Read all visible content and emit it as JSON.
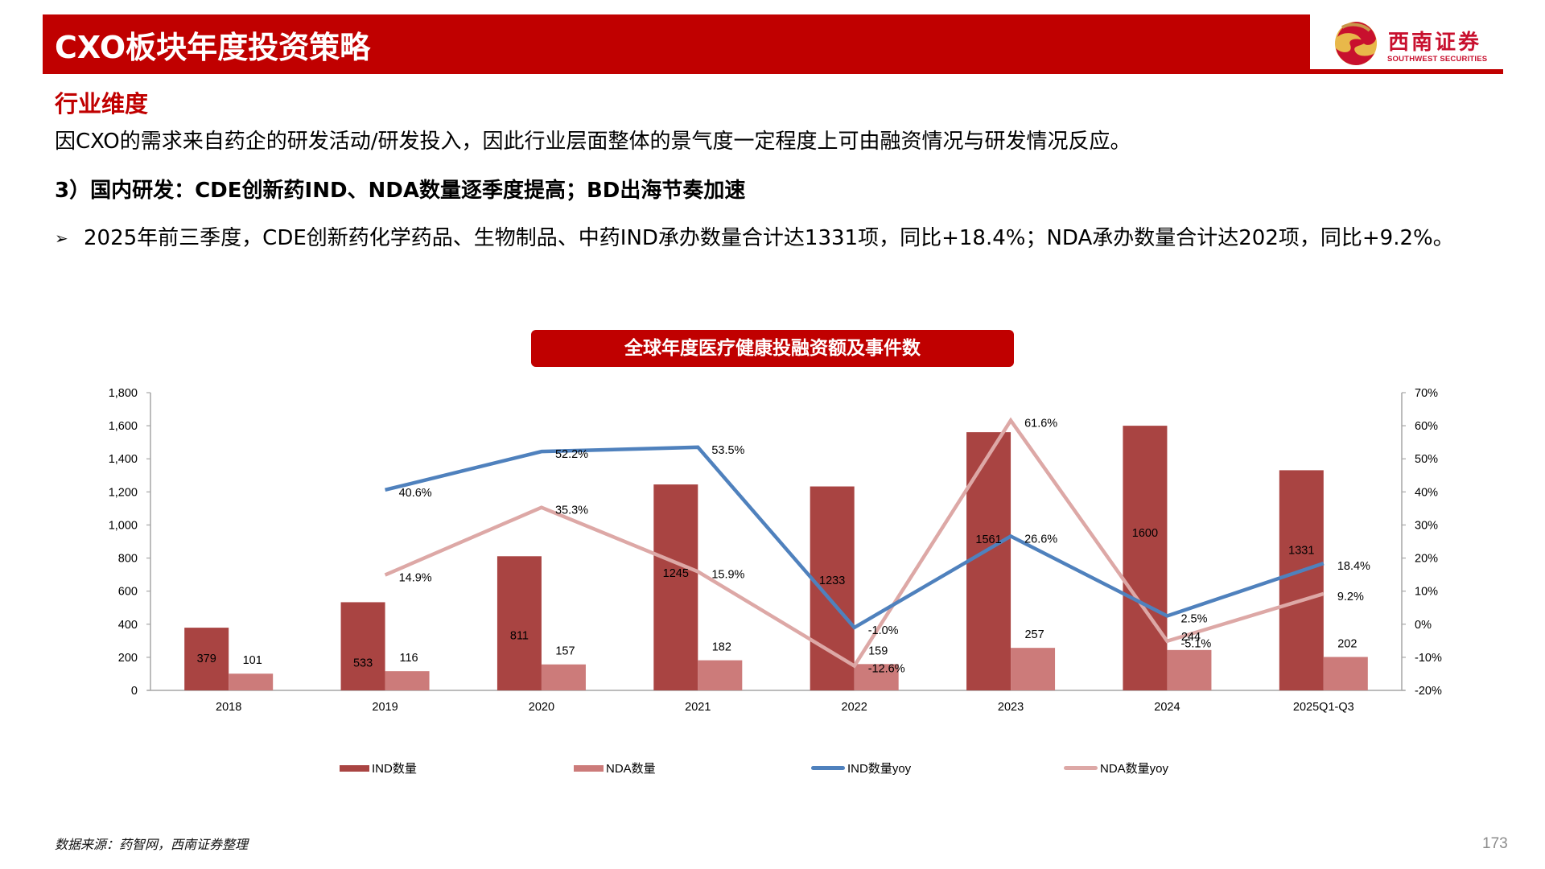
{
  "header": {
    "title": "CXO板块年度投资策略",
    "logo_cn": "西南证券",
    "logo_en": "SOUTHWEST SECURITIES",
    "colors": {
      "brand_red": "#C00000",
      "logo_gold": "#E8B84A",
      "logo_red": "#C8102E"
    }
  },
  "body": {
    "section_heading": "行业维度",
    "intro": "因CXO的需求来自药企的研发活动/研发投入，因此行业层面整体的景气度一定程度上可由融资情况与研发情况反应。",
    "sub_heading": "3）国内研发：CDE创新药IND、NDA数量逐季度提高；BD出海节奏加速",
    "bullet_mark": "➢",
    "bullet_text": "2025年前三季度，CDE创新药化学药品、生物制品、中药IND承办数量合计达1331项，同比+18.4%；NDA承办数量合计达202项，同比+9.2%。"
  },
  "chart_title": "全球年度医疗健康投融资额及事件数",
  "chart_data": {
    "type": "bar",
    "title": "全球年度医疗健康投融资额及事件数",
    "categories": [
      "2018",
      "2019",
      "2020",
      "2021",
      "2022",
      "2023",
      "2024",
      "2025Q1-Q3"
    ],
    "series": [
      {
        "name": "IND数量",
        "type": "bar",
        "axis": "left",
        "color": "#A94442",
        "values": [
          379,
          533,
          811,
          1245,
          1233,
          1561,
          1600,
          1331
        ]
      },
      {
        "name": "NDA数量",
        "type": "bar",
        "axis": "left",
        "color": "#CC7B7A",
        "values": [
          101,
          116,
          157,
          182,
          159,
          257,
          244,
          202
        ]
      },
      {
        "name": "IND数量yoy",
        "type": "line",
        "axis": "right",
        "color": "#4F81BD",
        "values": [
          null,
          40.6,
          52.2,
          53.5,
          -1.0,
          26.6,
          2.5,
          18.4
        ],
        "labels": [
          "",
          "40.6%",
          "52.2%",
          "53.5%",
          "-1.0%",
          "26.6%",
          "2.5%",
          "18.4%"
        ]
      },
      {
        "name": "NDA数量yoy",
        "type": "line",
        "axis": "right",
        "color": "#DDA8A6",
        "values": [
          null,
          14.9,
          35.3,
          15.9,
          -12.6,
          61.6,
          -5.1,
          9.2
        ],
        "labels": [
          "",
          "14.9%",
          "35.3%",
          "15.9%",
          "-12.6%",
          "61.6%",
          "-5.1%",
          "9.2%"
        ]
      }
    ],
    "y_left": {
      "min": 0,
      "max": 1800,
      "step": 200,
      "ticks": [
        "0",
        "200",
        "400",
        "600",
        "800",
        "1,000",
        "1,200",
        "1,400",
        "1,600",
        "1,800"
      ]
    },
    "y_right": {
      "min": -20,
      "max": 70,
      "step": 10,
      "ticks": [
        "-20%",
        "-10%",
        "0%",
        "10%",
        "20%",
        "30%",
        "40%",
        "50%",
        "60%",
        "70%"
      ]
    },
    "xlabel": "",
    "ylabel": "",
    "grid": false,
    "legend_position": "bottom"
  },
  "legend": [
    {
      "label": "IND数量",
      "kind": "bar",
      "color": "#A94442"
    },
    {
      "label": "NDA数量",
      "kind": "bar",
      "color": "#CC7B7A"
    },
    {
      "label": "IND数量yoy",
      "kind": "line",
      "color": "#4F81BD"
    },
    {
      "label": "NDA数量yoy",
      "kind": "line",
      "color": "#DDA8A6"
    }
  ],
  "footer": {
    "source": "数据来源：药智网，西南证券整理",
    "page_number": "173"
  }
}
